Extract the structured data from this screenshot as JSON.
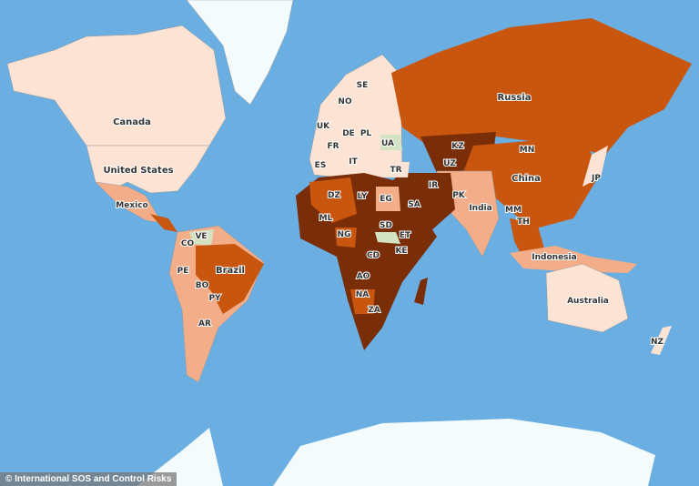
{
  "colors": {
    "ocean": "#6aaee2",
    "ice": "#f4fbfd",
    "very_low": "#fde3d4",
    "low": "#f3ad88",
    "medium": "#c9560f",
    "high": "#7a2e08",
    "special": "#d3e3c2"
  },
  "labels": {
    "canada": "Canada",
    "us": "United States",
    "mexico": "Mexico",
    "brazil": "Brazil",
    "russia": "Russia",
    "china": "China",
    "india": "India",
    "indonesia": "Indonesia",
    "australia": "Australia",
    "co": "CO",
    "ve": "VE",
    "pe": "PE",
    "bo": "BO",
    "py": "PY",
    "ar": "AR",
    "nz": "NZ",
    "no": "NO",
    "se": "SE",
    "uk": "UK",
    "de": "DE",
    "pl": "PL",
    "fr": "FR",
    "ua": "UA",
    "es": "ES",
    "it": "IT",
    "tr": "TR",
    "kz": "KZ",
    "uz": "UZ",
    "mn": "MN",
    "jp": "JP",
    "pk": "PK",
    "ir": "IR",
    "sa": "SA",
    "mm": "MM",
    "th": "TH",
    "dz": "DZ",
    "ly": "LY",
    "eg": "EG",
    "ml": "ML",
    "ng": "NG",
    "sd": "SD",
    "et": "ET",
    "cd": "CD",
    "ke": "KE",
    "ao": "AO",
    "na": "NA",
    "za": "ZA"
  },
  "credit": "© International SOS and Control Risks"
}
